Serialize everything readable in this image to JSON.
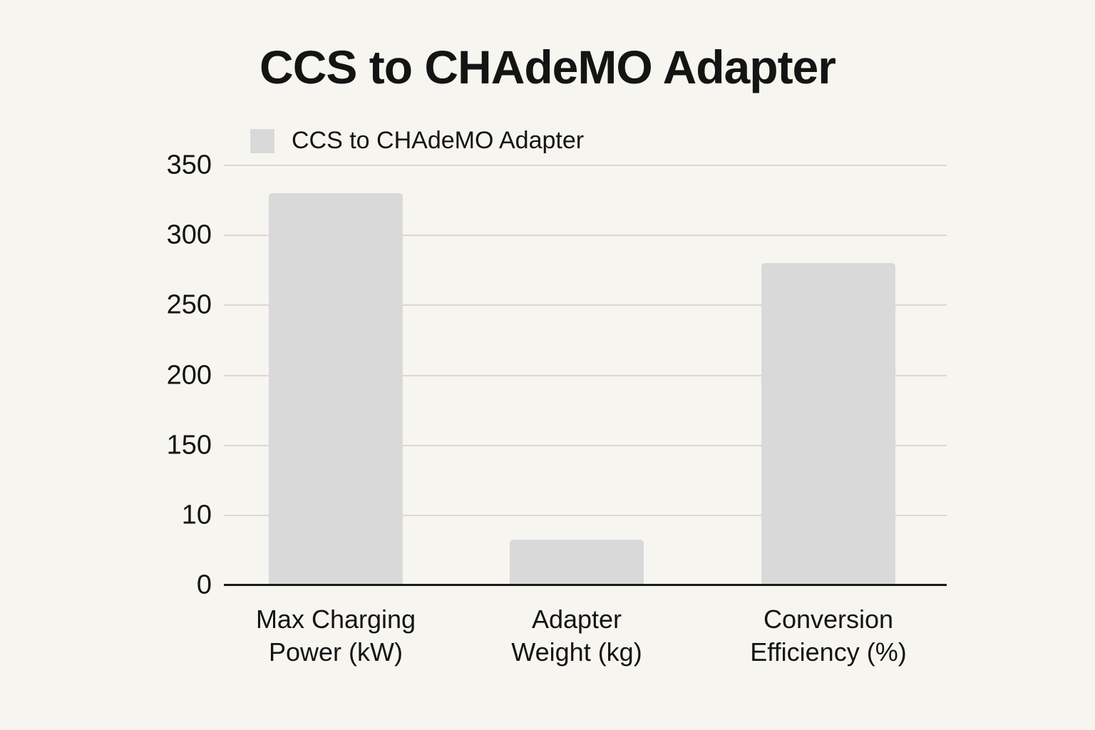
{
  "page": {
    "background_color": "#f7f5f0",
    "text_color": "#141414"
  },
  "chart_data": {
    "type": "bar",
    "title": "CCS to CHAdeMO Adapter",
    "categories": [
      [
        "Max Charging",
        "Power (kW)"
      ],
      [
        "Adapter",
        "Weight (kg)"
      ],
      [
        "Conversion",
        "Efficiency (%)"
      ]
    ],
    "series": [
      {
        "name": "CCS to CHAdeMO Adapter",
        "values": [
          330,
          6.5,
          280
        ]
      }
    ],
    "xlabel": "",
    "ylabel": "",
    "y_tick_labels": [
      "0",
      "10",
      "150",
      "200",
      "250",
      "300",
      "350"
    ],
    "y_tick_values": [
      0,
      10,
      150,
      200,
      250,
      300,
      350
    ],
    "ylim_note": "ticks evenly spaced as displayed; axis non-linear between 10 and 150",
    "grid": true,
    "legend": {
      "position": "top-left",
      "entries": [
        "CCS to CHAdeMO Adapter"
      ]
    },
    "colors": {
      "bar_fill": "#d9d9d9",
      "gridline": "#dbd8d3",
      "axis_line": "#1a1a1a",
      "background": "#f7f5f0"
    }
  }
}
